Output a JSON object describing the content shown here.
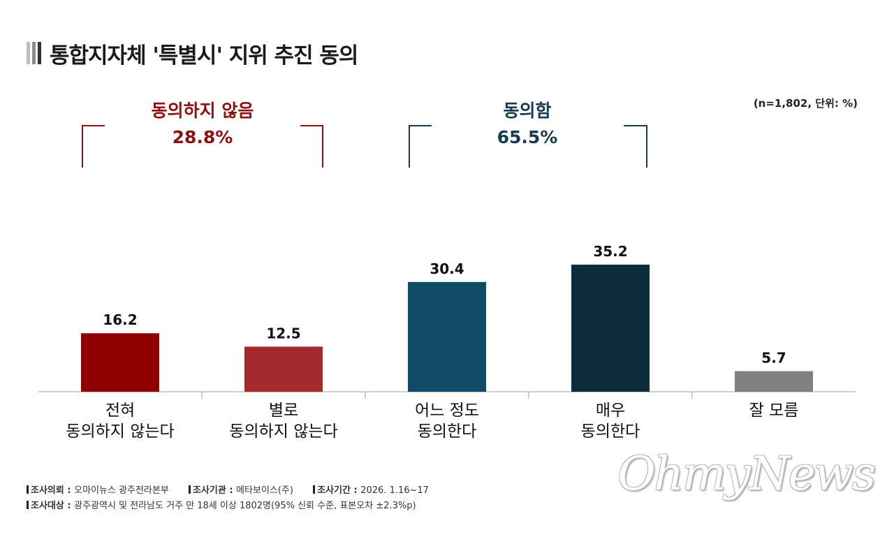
{
  "title": "통합지자체 '특별시' 지위 추진 동의",
  "note": "(n=1,802, 단위: %)",
  "groups": {
    "disagree": {
      "label": "동의하지 않음",
      "value": "28.8%",
      "color": "#8e1010"
    },
    "agree": {
      "label": "동의함",
      "value": "65.5%",
      "color": "#173b4f"
    }
  },
  "chart_data": {
    "type": "bar",
    "categories": [
      "전혀\n동의하지 않는다",
      "별로\n동의하지 않는다",
      "어느 정도\n동의한다",
      "매우\n동의한다",
      "잘 모름"
    ],
    "values": [
      16.2,
      12.5,
      30.4,
      35.2,
      5.7
    ],
    "value_labels": [
      "16.2",
      "12.5",
      "30.4",
      "35.2",
      "5.7"
    ],
    "colors": [
      "#8f0000",
      "#a52a2d",
      "#104a66",
      "#0c2b3c",
      "#808080"
    ],
    "ylim": [
      0,
      40
    ],
    "grid": false
  },
  "footer": {
    "client_label": "조사의뢰",
    "client": "오마이뉴스 광주전라본부",
    "agency_label": "조사기관",
    "agency": "메타보이스(주)",
    "period_label": "조사기간",
    "period": "2026. 1.16~17",
    "target_label": "조사대상",
    "target": "광주광역시 및 전라남도 거주 만 18세 이상 1802명(95% 신뢰 수준, 표본오차 ±2.3%p)"
  },
  "watermark": "OhmyNews"
}
